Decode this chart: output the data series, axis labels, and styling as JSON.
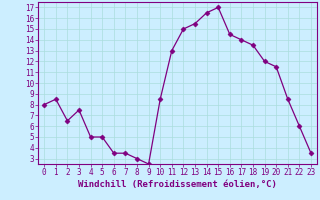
{
  "x": [
    0,
    1,
    2,
    3,
    4,
    5,
    6,
    7,
    8,
    9,
    10,
    11,
    12,
    13,
    14,
    15,
    16,
    17,
    18,
    19,
    20,
    21,
    22,
    23
  ],
  "y": [
    8,
    8.5,
    6.5,
    7.5,
    5,
    5,
    3.5,
    3.5,
    3,
    2.5,
    8.5,
    13,
    15,
    15.5,
    16.5,
    17,
    14.5,
    14,
    13.5,
    12,
    11.5,
    8.5,
    6,
    3.5
  ],
  "line_color": "#800080",
  "marker": "D",
  "marker_size": 2.5,
  "bg_color": "#cceeff",
  "grid_color": "#aadddd",
  "xlabel": "Windchill (Refroidissement éolien,°C)",
  "xlim": [
    -0.5,
    23.5
  ],
  "ylim": [
    2.5,
    17.5
  ],
  "yticks": [
    3,
    4,
    5,
    6,
    7,
    8,
    9,
    10,
    11,
    12,
    13,
    14,
    15,
    16,
    17
  ],
  "xticks": [
    0,
    1,
    2,
    3,
    4,
    5,
    6,
    7,
    8,
    9,
    10,
    11,
    12,
    13,
    14,
    15,
    16,
    17,
    18,
    19,
    20,
    21,
    22,
    23
  ],
  "tick_label_size": 5.5,
  "xlabel_size": 6.5,
  "label_color": "#800080",
  "border_color": "#800080",
  "linewidth": 0.9
}
